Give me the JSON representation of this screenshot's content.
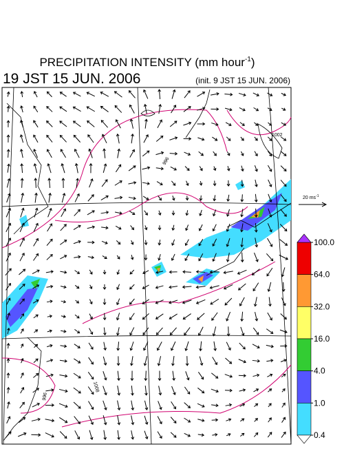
{
  "header": {
    "title": "PRECIPITATION INTENSITY (mm hour",
    "title_exponent": "-1",
    "title_end": ")",
    "valid_time": "19 JST 15 JUN. 2006",
    "init_time": "(init. 9 JST 15 JUN. 2006)"
  },
  "vector_key": {
    "label": "20 ms",
    "exponent": "-1"
  },
  "contour_labels": [
    "996",
    "1002",
    "1008",
    "996"
  ],
  "legend": {
    "ticks": [
      {
        "value": 100,
        "label": "100.0"
      },
      {
        "value": 64,
        "label": "64.0"
      },
      {
        "value": 32,
        "label": "32.0"
      },
      {
        "value": 16,
        "label": "16.0"
      },
      {
        "value": 4,
        "label": "4.0"
      },
      {
        "value": 1,
        "label": "1.0"
      },
      {
        "value": 0.4,
        "label": "0.4"
      }
    ],
    "colors": [
      "#ee0000",
      "#ff9933",
      "#ffff66",
      "#33cc33",
      "#5555ff",
      "#44ddff"
    ],
    "over_color": "#aa33ff",
    "under_color": "#ffffff"
  }
}
